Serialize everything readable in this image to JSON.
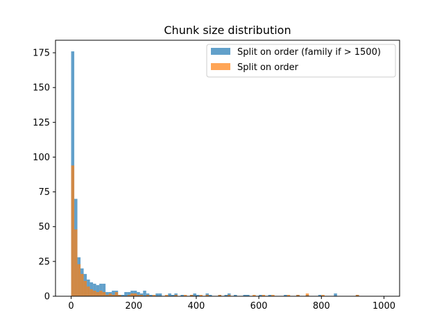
{
  "chart_data": {
    "type": "bar",
    "title": "Chunk size distribution",
    "xlabel": "",
    "ylabel": "",
    "xlim": [
      -50,
      1050
    ],
    "ylim": [
      0,
      184
    ],
    "bin_width": 10,
    "xticks": [
      0,
      200,
      400,
      600,
      800,
      1000
    ],
    "yticks": [
      0,
      25,
      50,
      75,
      100,
      125,
      150,
      175
    ],
    "grid": false,
    "legend_position": "top-right",
    "series": [
      {
        "name": "Split on order (family if > 1500)",
        "color": "#1f77b4",
        "opacity": 0.7,
        "bins": [
          [
            0,
            176
          ],
          [
            10,
            70
          ],
          [
            20,
            28
          ],
          [
            30,
            20
          ],
          [
            40,
            16
          ],
          [
            50,
            12
          ],
          [
            60,
            10
          ],
          [
            70,
            9
          ],
          [
            80,
            8
          ],
          [
            90,
            9
          ],
          [
            100,
            9
          ],
          [
            110,
            3
          ],
          [
            120,
            3
          ],
          [
            130,
            4
          ],
          [
            140,
            4
          ],
          [
            150,
            1
          ],
          [
            160,
            1
          ],
          [
            170,
            3
          ],
          [
            180,
            3
          ],
          [
            190,
            4
          ],
          [
            200,
            4
          ],
          [
            210,
            3
          ],
          [
            220,
            2
          ],
          [
            230,
            4
          ],
          [
            240,
            2
          ],
          [
            250,
            1
          ],
          [
            270,
            2
          ],
          [
            280,
            2
          ],
          [
            310,
            2
          ],
          [
            320,
            1
          ],
          [
            330,
            2
          ],
          [
            350,
            1
          ],
          [
            380,
            1
          ],
          [
            390,
            2
          ],
          [
            400,
            1
          ],
          [
            430,
            2
          ],
          [
            440,
            1
          ],
          [
            470,
            1
          ],
          [
            490,
            1
          ],
          [
            500,
            2
          ],
          [
            520,
            1
          ],
          [
            550,
            1
          ],
          [
            560,
            1
          ],
          [
            600,
            1
          ],
          [
            630,
            1
          ],
          [
            680,
            1
          ],
          [
            720,
            1
          ],
          [
            750,
            1
          ],
          [
            790,
            1
          ],
          [
            840,
            2
          ],
          [
            910,
            1
          ]
        ]
      },
      {
        "name": "Split on order",
        "color": "#ff7f0e",
        "opacity": 0.7,
        "bins": [
          [
            0,
            94
          ],
          [
            10,
            48
          ],
          [
            20,
            23
          ],
          [
            30,
            16
          ],
          [
            40,
            11
          ],
          [
            50,
            7
          ],
          [
            60,
            5
          ],
          [
            70,
            4
          ],
          [
            80,
            3
          ],
          [
            90,
            4
          ],
          [
            100,
            3
          ],
          [
            110,
            1
          ],
          [
            120,
            2
          ],
          [
            130,
            1
          ],
          [
            140,
            3
          ],
          [
            150,
            1
          ],
          [
            180,
            1
          ],
          [
            190,
            2
          ],
          [
            200,
            2
          ],
          [
            210,
            1
          ],
          [
            220,
            1
          ],
          [
            240,
            1
          ],
          [
            260,
            1
          ],
          [
            300,
            1
          ],
          [
            330,
            1
          ],
          [
            360,
            1
          ],
          [
            380,
            1
          ],
          [
            410,
            1
          ],
          [
            430,
            1
          ],
          [
            470,
            1
          ],
          [
            500,
            1
          ],
          [
            580,
            1
          ],
          [
            610,
            1
          ],
          [
            640,
            1
          ],
          [
            690,
            1
          ],
          [
            720,
            1
          ],
          [
            750,
            2
          ],
          [
            800,
            1
          ],
          [
            910,
            1
          ]
        ]
      }
    ]
  }
}
